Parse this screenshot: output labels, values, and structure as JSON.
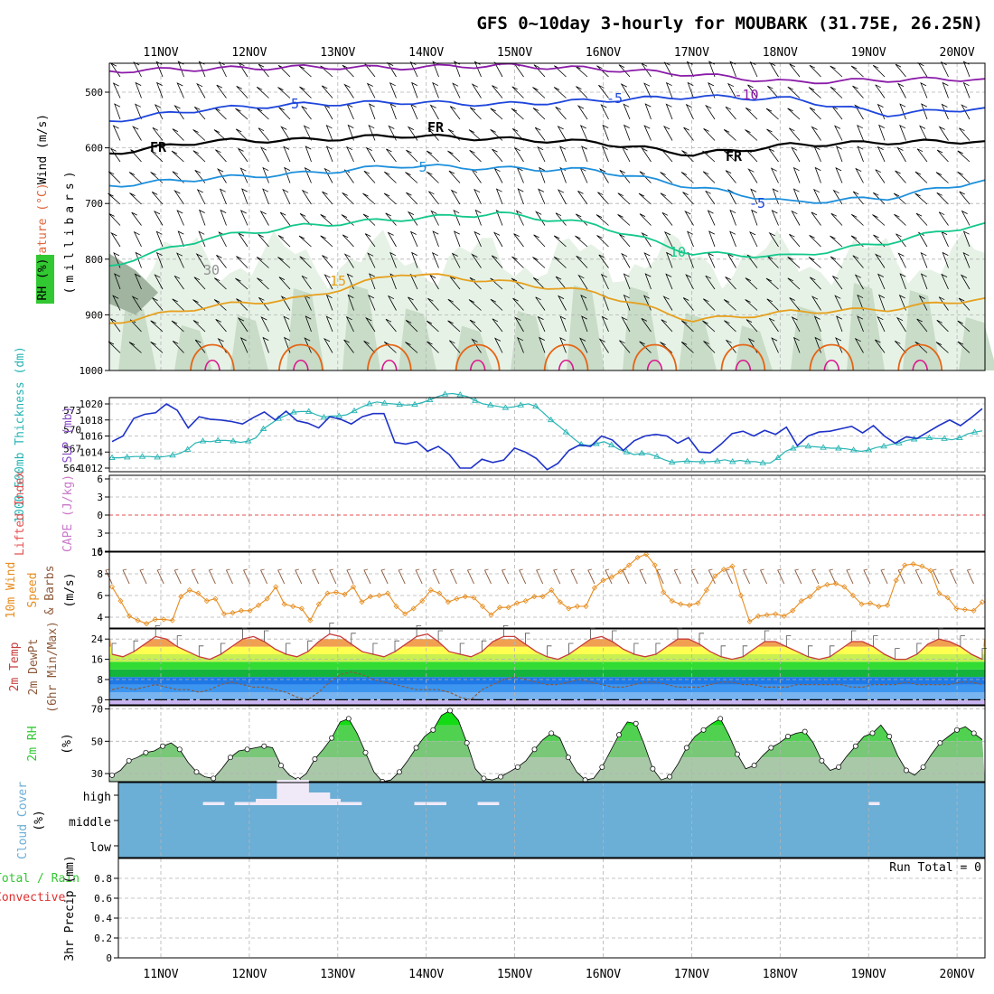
{
  "title": "GFS 0~10day 3-hourly for MOUBARK (31.75E, 26.25N)",
  "dates": [
    "11NOV",
    "12NOV",
    "13NOV",
    "14NOV",
    "15NOV",
    "16NOV",
    "17NOV",
    "18NOV",
    "19NOV",
    "20NOV"
  ],
  "colors": {
    "grid": "#b4b4b4",
    "rh_light": "#e6f2e6",
    "rh_mid": "#c8dcc8",
    "rh_dark": "#a0b4a0",
    "wind_barb": "#000000",
    "temp_minus10": "#8a1ca8",
    "temp_minus5": "#1e46dc",
    "freezing": "#000000",
    "temp_plus5": "#1e90dc",
    "temp_plus10": "#14c88c",
    "temp_plus15": "#e6a01e",
    "temp_plus20": "#e66414",
    "temp_plus25": "#dc148c",
    "slp": "#1e32c8",
    "thickness": "#28b4b4",
    "lifted_zero": "#e65050",
    "wind10m": "#e68c1e",
    "temp_line": "#c83c3c",
    "dewpt_line": "#8c5a3c",
    "rh_fill": "#32c832",
    "cloud_bg": "#6baed6",
    "cloud_high": "#f0eaf8"
  },
  "chart_data": [
    {
      "type": "contour",
      "panel": "upper-air",
      "ylabels": [
        "Wind (m/s)",
        "Temperature (°C)",
        "RH (%)",
        "(millibars)"
      ],
      "ylim": [
        1000,
        450
      ],
      "yticks": [
        500,
        600,
        700,
        800,
        900,
        1000
      ],
      "contour_labels": [
        "-10",
        "-5",
        "FR",
        "5",
        "10",
        "15",
        "30"
      ],
      "isotherms": [
        {
          "level": "-10",
          "pressure_mb": [
            462,
            458,
            455,
            456,
            452,
            458,
            468,
            482,
            478,
            476
          ]
        },
        {
          "level": "-5",
          "pressure_mb": [
            552,
            530,
            522,
            518,
            522,
            515,
            508,
            512,
            540,
            528
          ]
        },
        {
          "level": "FR",
          "pressure_mb": [
            610,
            588,
            586,
            578,
            584,
            590,
            612,
            595,
            590,
            588
          ]
        },
        {
          "level": "5",
          "pressure_mb": [
            668,
            655,
            646,
            632,
            637,
            640,
            670,
            698,
            690,
            658
          ]
        },
        {
          "level": "10",
          "pressure_mb": [
            812,
            762,
            740,
            728,
            718,
            738,
            790,
            795,
            770,
            735
          ]
        },
        {
          "level": "15",
          "pressure_mb": [
            915,
            885,
            870,
            825,
            840,
            860,
            910,
            895,
            890,
            870
          ]
        }
      ]
    },
    {
      "type": "line",
      "panel": "slp-thickness",
      "ylabels": [
        "1000-500mb Thickness (dm)",
        "SLP (mb)"
      ],
      "y_left_ticks": [
        564,
        567,
        570,
        573
      ],
      "y_right_ticks": [
        1012,
        1014,
        1016,
        1018,
        1020
      ],
      "series": [
        {
          "label": "SLP (mb)",
          "axis": "right",
          "values": [
            1015.3,
            1016.0,
            1018.2,
            1018.7,
            1018.9,
            1020.0,
            1019.2,
            1017.0,
            1018.4,
            1018.1,
            1018.0,
            1017.8,
            1017.5,
            1018.3,
            1019.0,
            1018.0,
            1019.1,
            1017.9,
            1017.6,
            1017.0,
            1018.4,
            1018.1,
            1017.5,
            1018.4,
            1018.8,
            1018.8,
            1015.2,
            1015.0,
            1015.3,
            1014.1,
            1014.7,
            1013.7,
            1012.0,
            1012.0,
            1013.1,
            1012.7,
            1013.0,
            1014.5,
            1014.0,
            1013.2,
            1011.8,
            1012.6,
            1014.2,
            1014.9,
            1014.7,
            1016.0,
            1015.5,
            1014.2,
            1015.4,
            1016.0,
            1016.2,
            1016.0,
            1015.1,
            1015.8,
            1014.0,
            1013.9,
            1015.0,
            1016.3,
            1016.6,
            1016.0,
            1016.7,
            1016.2,
            1017.1,
            1014.8,
            1016.0,
            1016.5,
            1016.6,
            1016.9,
            1017.2,
            1016.4,
            1017.3,
            1016.0,
            1015.1,
            1015.9,
            1015.7,
            1016.5,
            1017.3,
            1018.0,
            1017.3,
            1018.3,
            1019.4
          ]
        },
        {
          "label": "1000-500mb Thickness (dm)",
          "axis": "left",
          "values": [
            565.6,
            565.6,
            565.7,
            565.8,
            565.8,
            565.8,
            565.7,
            565.8,
            566.0,
            566.3,
            566.9,
            567.9,
            568.2,
            568.1,
            568.3,
            568.3,
            568.2,
            568.0,
            568.2,
            568.7,
            570.1,
            570.9,
            571.7,
            572.2,
            572.7,
            572.8,
            572.8,
            572.3,
            571.9,
            572.1,
            572.1,
            572.3,
            572.9,
            573.5,
            574.0,
            574.3,
            574.1,
            574.0,
            573.9,
            573.8,
            573.9,
            574.2,
            574.6,
            575.1,
            575.5,
            575.6,
            575.4,
            575.1,
            574.5,
            574.0,
            573.8,
            573.6,
            573.4,
            573.5,
            573.8,
            574.0,
            573.6,
            572.6,
            571.5,
            570.6,
            569.6,
            568.6,
            567.7,
            567.5,
            567.8,
            568.1,
            567.6,
            566.9,
            566.5,
            566.1,
            566.3,
            566.2,
            565.8,
            565.3,
            564.9,
            565.0,
            565.1,
            565.0,
            565.0,
            565.0,
            565.1,
            565.3,
            565.0,
            565.2,
            565.0,
            565.0,
            564.8,
            564.8,
            565.6,
            566.6,
            567.1,
            567.4,
            567.4,
            567.3,
            567.2,
            567.1,
            567.1,
            567.0,
            566.8,
            566.6,
            566.8,
            567.2,
            567.4,
            567.7,
            567.9,
            568.3,
            568.5,
            568.7,
            568.7,
            568.6,
            568.6,
            568.4,
            568.7,
            569.3,
            569.6,
            569.8
          ]
        }
      ]
    },
    {
      "type": "line",
      "panel": "lifted-cape",
      "ylabels": [
        "Lifted Index",
        "CAPE (J/kg)"
      ],
      "yticks": [
        6,
        3,
        0,
        -3,
        -6
      ],
      "series": [
        {
          "label": "Lifted Index",
          "values": [
            0
          ]
        }
      ]
    },
    {
      "type": "line",
      "panel": "wind10m",
      "ylabels": [
        "10m Wind",
        "Speed",
        "& Barbs",
        "(m/s)"
      ],
      "yticks": [
        4,
        6,
        8,
        10
      ],
      "ylim": [
        3,
        10
      ],
      "series": [
        {
          "label": "10m Wind Speed",
          "values": [
            6.8,
            5.5,
            4.1,
            3.7,
            3.4,
            3.8,
            3.8,
            3.7,
            5.9,
            6.5,
            6.2,
            5.5,
            5.7,
            4.3,
            4.4,
            4.6,
            4.6,
            5.1,
            5.7,
            6.8,
            5.2,
            5.0,
            4.8,
            3.7,
            5.2,
            6.2,
            6.3,
            6.1,
            6.8,
            5.4,
            5.9,
            6.0,
            6.2,
            5.0,
            4.3,
            4.8,
            5.5,
            6.5,
            6.2,
            5.4,
            5.7,
            5.9,
            5.8,
            5.0,
            4.2,
            4.9,
            4.9,
            5.3,
            5.5,
            5.9,
            5.9,
            6.5,
            5.4,
            4.8,
            5.0,
            5.0,
            6.7,
            7.4,
            7.7,
            8.2,
            8.8,
            9.5,
            9.8,
            8.8,
            6.3,
            5.5,
            5.2,
            5.1,
            5.3,
            6.5,
            7.8,
            8.4,
            8.7,
            6.0,
            3.6,
            4.1,
            4.2,
            4.3,
            4.1,
            4.6,
            5.5,
            5.9,
            6.7,
            7.0,
            7.1,
            6.8,
            6.0,
            5.2,
            5.3,
            5.0,
            5.1,
            7.4,
            8.8,
            8.9,
            8.7,
            8.3,
            6.2,
            5.8,
            4.8,
            4.7,
            4.6,
            5.4
          ]
        }
      ]
    },
    {
      "type": "area",
      "panel": "temperature",
      "ylabels": [
        "2m Temp",
        "2m DewPt",
        "(6hr Min/Max)"
      ],
      "yticks": [
        0,
        8,
        16,
        24
      ],
      "ylim": [
        -2,
        28
      ],
      "series": [
        {
          "label": "2m Temp",
          "values": [
            18,
            17,
            19,
            22,
            25,
            24,
            21,
            19,
            17,
            16,
            18,
            21,
            24,
            25,
            23,
            20,
            18,
            17,
            19,
            23,
            26,
            25,
            22,
            19,
            18,
            17,
            19,
            22,
            25,
            26,
            23,
            19,
            18,
            17,
            19,
            23,
            25,
            25,
            22,
            19,
            17,
            16,
            18,
            21,
            24,
            25,
            23,
            20,
            18,
            17,
            18,
            21,
            24,
            24,
            22,
            19,
            17,
            16,
            17,
            20,
            23,
            23,
            21,
            19,
            17,
            16,
            17,
            20,
            23,
            23,
            21,
            18,
            16,
            16,
            18,
            22,
            24,
            23,
            21,
            18,
            16
          ]
        },
        {
          "label": "2m DewPt",
          "values": [
            4,
            5,
            4,
            5,
            6,
            5,
            4,
            4,
            3,
            4,
            6,
            7,
            6,
            5,
            5,
            4,
            3,
            1,
            0,
            3,
            7,
            10,
            11,
            10,
            8,
            7,
            6,
            5,
            4,
            4,
            4,
            3,
            1,
            0,
            4,
            6,
            8,
            9,
            8,
            7,
            6,
            6,
            7,
            8,
            7,
            6,
            5,
            5,
            6,
            7,
            7,
            6,
            5,
            5,
            5,
            6,
            7,
            7,
            6,
            6,
            5,
            5,
            5,
            6,
            6,
            6,
            6,
            6,
            5,
            5,
            6,
            6,
            6,
            7,
            6,
            6,
            6,
            6,
            7,
            7,
            6
          ]
        }
      ]
    },
    {
      "type": "area",
      "panel": "rh2m",
      "ylabels": [
        "2m RH",
        "(%)"
      ],
      "yticks": [
        30,
        50,
        70
      ],
      "ylim": [
        25,
        72
      ],
      "series": [
        {
          "label": "2m RH",
          "values": [
            29,
            32,
            38,
            40,
            43,
            44,
            47,
            49,
            45,
            37,
            31,
            28,
            27,
            33,
            40,
            44,
            45,
            46,
            47,
            46,
            35,
            29,
            26,
            30,
            39,
            45,
            52,
            62,
            64,
            55,
            43,
            31,
            25,
            26,
            31,
            38,
            46,
            53,
            57,
            66,
            69,
            63,
            49,
            33,
            27,
            26,
            28,
            31,
            34,
            38,
            45,
            51,
            55,
            52,
            40,
            31,
            26,
            27,
            34,
            44,
            54,
            62,
            61,
            48,
            33,
            26,
            28,
            36,
            46,
            53,
            57,
            61,
            64,
            54,
            42,
            33,
            35,
            41,
            46,
            49,
            53,
            55,
            56,
            49,
            38,
            32,
            34,
            41,
            47,
            53,
            55,
            60,
            53,
            41,
            32,
            29,
            34,
            42,
            49,
            53,
            57,
            59,
            55,
            51
          ]
        }
      ]
    },
    {
      "type": "bar",
      "panel": "cloud-cover",
      "ylabels": [
        "Cloud Cover",
        "(%)"
      ],
      "levels": [
        "high",
        "middle",
        "low"
      ],
      "series": [
        {
          "label": "high",
          "values": [
            0,
            0,
            0,
            0,
            0,
            0,
            0,
            0,
            5,
            5,
            0,
            5,
            5,
            10,
            10,
            40,
            40,
            40,
            20,
            20,
            10,
            5,
            5,
            0,
            0,
            0,
            0,
            0,
            5,
            5,
            5,
            0,
            0,
            0,
            5,
            5,
            0,
            0,
            0,
            0,
            0,
            0,
            0,
            0,
            0,
            0,
            0,
            0,
            0,
            0,
            0,
            0,
            0,
            0,
            0,
            0,
            0,
            0,
            0,
            0,
            0,
            0,
            0,
            0,
            0,
            0,
            0,
            0,
            0,
            0,
            0,
            5,
            0,
            0,
            0,
            0,
            0,
            0,
            0,
            0,
            0,
            0
          ]
        }
      ]
    },
    {
      "type": "bar",
      "panel": "precip",
      "ylabels": [
        "Total / Rain",
        "Convective",
        "3hr Precip (mm)"
      ],
      "yticks": [
        0,
        0.2,
        0.4,
        0.6,
        0.8
      ],
      "ylim": [
        0,
        1
      ],
      "run_total_label": "Run Total = 0",
      "series": [
        {
          "label": "Total",
          "values": [
            0
          ]
        }
      ]
    }
  ]
}
